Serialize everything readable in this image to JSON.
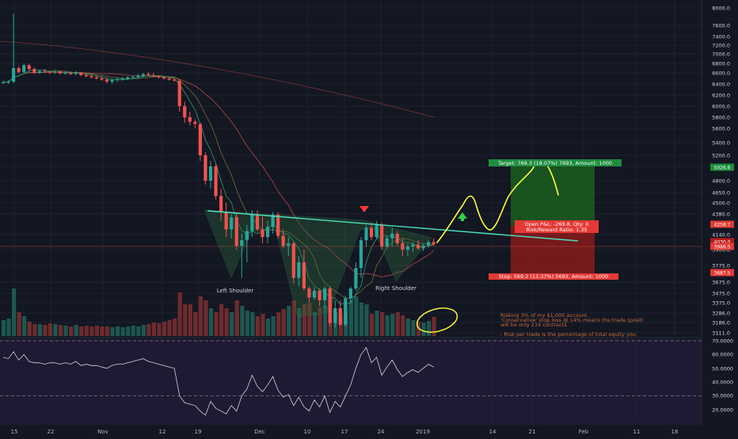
{
  "colors": {
    "background": "#131722",
    "grid": "#1e2230",
    "up": "#26a69a",
    "down": "#ef5350",
    "target_zone": "#1b5e20",
    "stop_zone": "#8e1c1c",
    "rsi_band": "#2a1d44",
    "neckline": "#4ee0c0",
    "projection": "#ffff3c",
    "annotation_text": "#c86a3c"
  },
  "chart_data": {
    "type": "candlestick",
    "price_axis": {
      "ticks": [
        "8000.0",
        "7600.0",
        "7400.0",
        "7200.0",
        "7000.0",
        "6800.0",
        "6600.0",
        "6400.0",
        "6200.0",
        "6000.0",
        "5800.0",
        "5600.0",
        "5400.0",
        "5200.0",
        "5000.0",
        "4800.0",
        "4650.0",
        "4500.0",
        "4380.0",
        "4140.0",
        "3900.0",
        "3775.0",
        "3675.0",
        "3475.0",
        "3375.0",
        "3286.0",
        "3186.0",
        "3111.0"
      ],
      "price_labels": [
        {
          "value": "5026.6",
          "kind": "target"
        },
        {
          "value": "4258.7",
          "kind": "pnl"
        },
        {
          "value": "4030.0",
          "kind": "current_small"
        },
        {
          "value": "3986.5",
          "kind": "current"
        },
        {
          "value": "3687.5",
          "kind": "stop"
        }
      ]
    },
    "rsi_axis": {
      "ticks": [
        "70.0000",
        "60.0000",
        "50.0000",
        "40.0000",
        "30.0000",
        "20.0000"
      ],
      "levels": [
        70,
        30
      ],
      "range": [
        14,
        73
      ]
    },
    "x_axis_ticks": [
      "15",
      "22",
      "Nov",
      "12",
      "19",
      "Dec",
      "10",
      "17",
      "24",
      "2019",
      "14",
      "21",
      "Feb",
      "11",
      "18"
    ],
    "candles_ohlc": [
      [
        6420,
        6460,
        6400,
        6430
      ],
      [
        6430,
        6470,
        6400,
        6440
      ],
      [
        6440,
        7820,
        6420,
        6700
      ],
      [
        6700,
        6740,
        6590,
        6620
      ],
      [
        6620,
        6800,
        6600,
        6760
      ],
      [
        6760,
        6790,
        6640,
        6680
      ],
      [
        6680,
        6720,
        6580,
        6600
      ],
      [
        6600,
        6660,
        6580,
        6640
      ],
      [
        6640,
        6680,
        6600,
        6620
      ],
      [
        6620,
        6650,
        6580,
        6610
      ],
      [
        6610,
        6660,
        6580,
        6630
      ],
      [
        6630,
        6650,
        6570,
        6590
      ],
      [
        6590,
        6640,
        6570,
        6600
      ],
      [
        6600,
        6630,
        6560,
        6580
      ],
      [
        6580,
        6640,
        6560,
        6610
      ],
      [
        6610,
        6620,
        6540,
        6560
      ],
      [
        6560,
        6590,
        6520,
        6540
      ],
      [
        6540,
        6580,
        6500,
        6520
      ],
      [
        6520,
        6560,
        6480,
        6500
      ],
      [
        6500,
        6540,
        6460,
        6480
      ],
      [
        6480,
        6520,
        6420,
        6440
      ],
      [
        6440,
        6500,
        6400,
        6470
      ],
      [
        6470,
        6520,
        6430,
        6490
      ],
      [
        6490,
        6530,
        6460,
        6500
      ],
      [
        6500,
        6540,
        6470,
        6520
      ],
      [
        6520,
        6560,
        6490,
        6530
      ],
      [
        6530,
        6580,
        6500,
        6550
      ],
      [
        6550,
        6600,
        6520,
        6580
      ],
      [
        6580,
        6620,
        6540,
        6560
      ],
      [
        6560,
        6600,
        6530,
        6540
      ],
      [
        6540,
        6560,
        6500,
        6520
      ],
      [
        6520,
        6540,
        6480,
        6500
      ],
      [
        6500,
        6520,
        6460,
        6480
      ],
      [
        6480,
        6500,
        6440,
        6460
      ],
      [
        6460,
        6480,
        5900,
        6000
      ],
      [
        6000,
        6080,
        5700,
        5800
      ],
      [
        5800,
        5900,
        5650,
        5720
      ],
      [
        5720,
        5760,
        5600,
        5680
      ],
      [
        5680,
        5700,
        5100,
        5200
      ],
      [
        5200,
        5250,
        4750,
        4800
      ],
      [
        4800,
        5100,
        4700,
        5000
      ],
      [
        5000,
        5050,
        4550,
        4600
      ],
      [
        4600,
        4700,
        4300,
        4400
      ],
      [
        4400,
        4500,
        4100,
        4200
      ],
      [
        4200,
        4380,
        4080,
        4340
      ],
      [
        4340,
        4400,
        3900,
        3960
      ],
      [
        3960,
        4150,
        3700,
        4050
      ],
      [
        4050,
        4250,
        3800,
        4180
      ],
      [
        4180,
        4420,
        4100,
        4370
      ],
      [
        4370,
        4420,
        4180,
        4200
      ],
      [
        4200,
        4350,
        4000,
        4100
      ],
      [
        4100,
        4300,
        4000,
        4230
      ],
      [
        4230,
        4400,
        4150,
        4370
      ],
      [
        4370,
        4400,
        4080,
        4120
      ],
      [
        4120,
        4200,
        3920,
        3960
      ],
      [
        3960,
        4100,
        3850,
        4000
      ],
      [
        4000,
        4030,
        3650,
        3700
      ],
      [
        3700,
        3850,
        3600,
        3800
      ],
      [
        3800,
        3900,
        3520,
        3560
      ],
      [
        3560,
        3600,
        3380,
        3430
      ],
      [
        3430,
        3580,
        3400,
        3520
      ],
      [
        3520,
        3560,
        3360,
        3400
      ],
      [
        3400,
        3600,
        3350,
        3560
      ],
      [
        3560,
        3600,
        3220,
        3280
      ],
      [
        3280,
        3400,
        3200,
        3350
      ],
      [
        3350,
        3400,
        3230,
        3250
      ],
      [
        3250,
        3450,
        3220,
        3420
      ],
      [
        3420,
        3600,
        3380,
        3560
      ],
      [
        3560,
        3800,
        3520,
        3760
      ],
      [
        3760,
        4100,
        3700,
        4050
      ],
      [
        4050,
        4250,
        3950,
        4220
      ],
      [
        4220,
        4280,
        4050,
        4100
      ],
      [
        4100,
        4300,
        4060,
        4250
      ],
      [
        4250,
        4280,
        3900,
        3950
      ],
      [
        3950,
        4120,
        3920,
        4080
      ],
      [
        4080,
        4220,
        3950,
        4150
      ],
      [
        4150,
        4180,
        3960,
        4000
      ],
      [
        4000,
        4080,
        3850,
        3900
      ],
      [
        3900,
        4000,
        3850,
        3950
      ],
      [
        3950,
        4020,
        3880,
        3980
      ],
      [
        3980,
        4050,
        3900,
        3920
      ],
      [
        3920,
        4000,
        3890,
        3960
      ],
      [
        3960,
        4050,
        3930,
        4020
      ],
      [
        4020,
        4080,
        3960,
        3985
      ]
    ],
    "volume": [
      0.2,
      0.22,
      0.6,
      0.3,
      0.25,
      0.18,
      0.15,
      0.15,
      0.14,
      0.16,
      0.15,
      0.14,
      0.13,
      0.12,
      0.14,
      0.12,
      0.13,
      0.12,
      0.13,
      0.12,
      0.12,
      0.11,
      0.12,
      0.11,
      0.12,
      0.13,
      0.12,
      0.14,
      0.15,
      0.17,
      0.16,
      0.18,
      0.2,
      0.22,
      0.55,
      0.4,
      0.4,
      0.3,
      0.5,
      0.45,
      0.35,
      0.3,
      0.4,
      0.35,
      0.3,
      0.45,
      0.38,
      0.32,
      0.3,
      0.25,
      0.28,
      0.22,
      0.25,
      0.3,
      0.34,
      0.38,
      0.45,
      0.35,
      0.4,
      0.42,
      0.3,
      0.36,
      0.38,
      0.52,
      0.3,
      0.28,
      0.35,
      0.45,
      0.5,
      0.42,
      0.4,
      0.28,
      0.32,
      0.3,
      0.26,
      0.28,
      0.3,
      0.26,
      0.22,
      0.2,
      0.18,
      0.17,
      0.19,
      0.24
    ],
    "rsi": [
      58,
      57,
      62,
      56,
      60,
      55,
      54,
      54,
      53,
      54,
      54,
      53,
      54,
      53,
      55,
      52,
      53,
      52,
      52,
      51,
      50,
      52,
      53,
      53,
      54,
      55,
      56,
      57,
      55,
      54,
      53,
      52,
      51,
      50,
      30,
      25,
      24,
      23,
      19,
      16,
      26,
      21,
      19,
      17,
      23,
      19,
      30,
      35,
      45,
      37,
      33,
      38,
      44,
      34,
      29,
      31,
      23,
      29,
      22,
      19,
      27,
      22,
      30,
      18,
      26,
      22,
      30,
      38,
      50,
      60,
      65,
      54,
      58,
      45,
      51,
      56,
      49,
      44,
      47,
      49,
      47,
      50,
      53,
      51
    ],
    "annotations": {
      "left_shoulder": "Left Shoulder",
      "right_shoulder": "Right Shoulder",
      "target_box": "Target: 769.3 (18.07%) 7693, Amount: 1000",
      "open_pnl": "Open P&L: -269.8, Qty: 0",
      "risk_reward": "Risk/Reward Ratio: 1.35",
      "stop_box": "Stop: 569.2 (13.37%) 5692, Amount: 1000",
      "note_line1": "Risking 3% of my $1,000 account.",
      "note_line2": "'Conservative' stop loss @ 14% means the trade (positi",
      "note_line3": "will be only 214 contracts",
      "note_line4": "- Risk per trade is the percentage of total equity you"
    }
  }
}
